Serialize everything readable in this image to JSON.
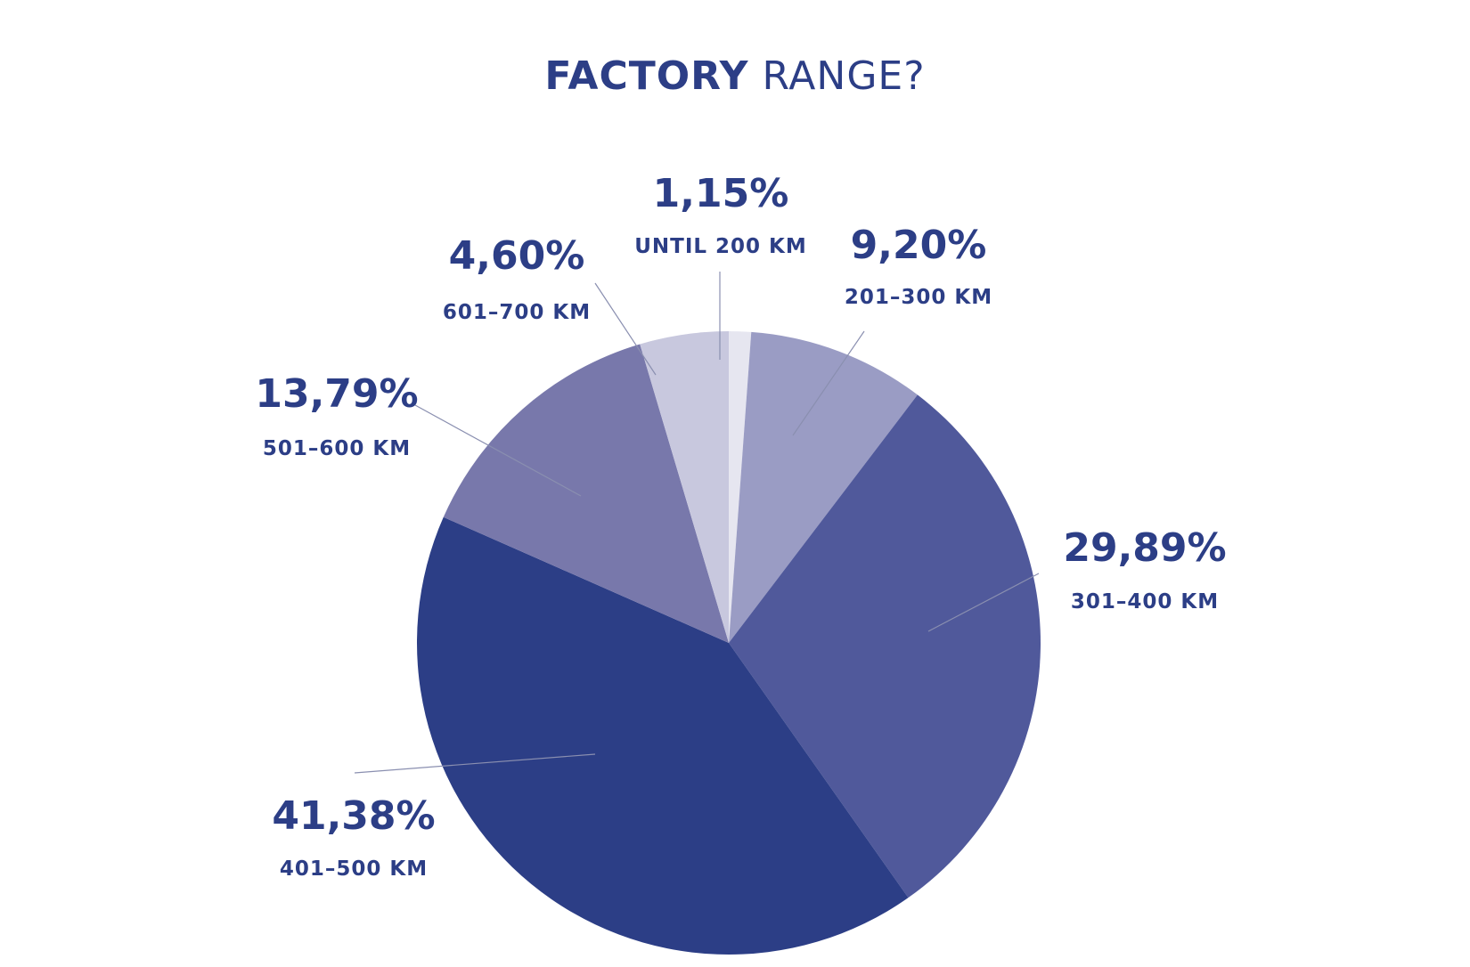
{
  "chart_data": {
    "type": "pie",
    "title_bold": "FACTORY",
    "title_rest": "RANGE?",
    "slices": [
      {
        "label": "UNTIL 200 KM",
        "pct_text": "1,15%",
        "value": 1.15,
        "color": "#e6e6f0"
      },
      {
        "label": "201–300 KM",
        "pct_text": "9,20%",
        "value": 9.2,
        "color": "#9a9cc4"
      },
      {
        "label": "301–400 KM",
        "pct_text": "29,89%",
        "value": 29.89,
        "color": "#50599b"
      },
      {
        "label": "401–500 KM",
        "pct_text": "41,38%",
        "value": 41.38,
        "color": "#2c3e86"
      },
      {
        "label": "501–600 KM",
        "pct_text": "13,79%",
        "value": 13.79,
        "color": "#7878ab"
      },
      {
        "label": "601–700 KM",
        "pct_text": "4,60%",
        "value": 4.6,
        "color": "#c8c8de"
      }
    ]
  }
}
